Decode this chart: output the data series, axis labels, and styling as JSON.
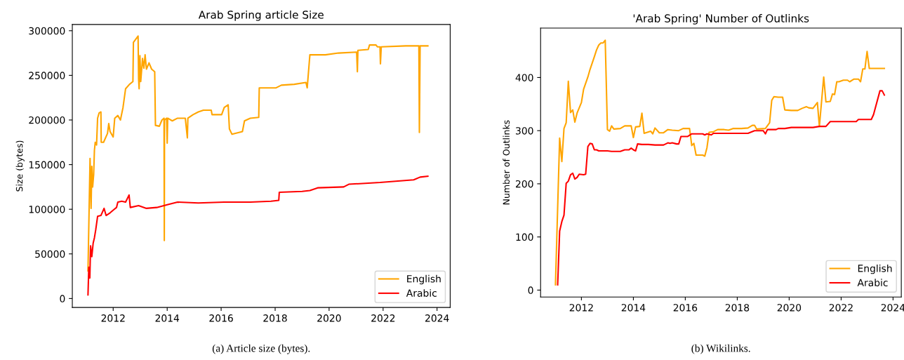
{
  "chart_data": [
    {
      "type": "line",
      "title": "Arab Spring article Size",
      "ylabel": "Size (bytes)",
      "legend": "lower right",
      "grid": false,
      "xlim": [
        "2010-06-27",
        "2024-06-27"
      ],
      "xticks": [
        "2012",
        "2014",
        "2016",
        "2018",
        "2020",
        "2022",
        "2024"
      ],
      "ylim": [
        -10000,
        307000
      ],
      "yticks": [
        0,
        50000,
        100000,
        150000,
        200000,
        250000,
        300000
      ],
      "annotations": [
        "(a) Article size (bytes)."
      ],
      "series": [
        {
          "name": "English",
          "color": "#ffa500",
          "x": [
            "2011-01-25",
            "2011-02-22",
            "2011-03-08",
            "2011-03-18",
            "2011-03-29",
            "2011-04-12",
            "2011-04-22",
            "2011-05-03",
            "2011-05-21",
            "2011-06-04",
            "2011-06-25",
            "2011-07-19",
            "2011-07-23",
            "2011-08-24",
            "2011-10-16",
            "2011-11-02",
            "2011-11-20",
            "2012-01-01",
            "2012-01-22",
            "2012-03-04",
            "2012-04-08",
            "2012-05-13",
            "2012-06-17",
            "2012-08-09",
            "2012-09-24",
            "2012-10-01",
            "2012-12-03",
            "2012-12-10",
            "2012-12-17",
            "2012-12-28",
            "2013-01-08",
            "2013-02-01",
            "2013-02-19",
            "2013-03-08",
            "2013-03-26",
            "2013-04-30",
            "2013-06-04",
            "2013-07-16",
            "2013-07-26",
            "2013-09-17",
            "2013-10-22",
            "2013-11-19",
            "2013-11-23",
            "2013-11-26",
            "2013-12-24",
            "2014-01-01",
            "2014-01-08",
            "2014-03-11",
            "2014-05-21",
            "2014-09-03",
            "2014-10-01",
            "2014-10-08",
            "2014-12-17",
            "2015-02-26",
            "2015-05-07",
            "2015-08-20",
            "2015-08-31",
            "2016-01-08",
            "2016-02-12",
            "2016-04-05",
            "2016-04-22",
            "2016-05-27",
            "2016-10-15",
            "2016-11-12",
            "2017-01-29",
            "2017-05-24",
            "2017-05-31",
            "2018-01-14",
            "2018-03-26",
            "2018-09-17",
            "2019-02-22",
            "2019-03-11",
            "2019-04-16",
            "2019-07-30",
            "2019-11-12",
            "2020-05-07",
            "2021-01-08",
            "2021-01-18",
            "2021-01-25",
            "2021-06-14",
            "2021-07-01",
            "2021-09-27",
            "2021-10-15",
            "2021-11-20",
            "2021-11-26",
            "2021-12-07",
            "2022-11-05",
            "2023-04-30",
            "2023-05-07",
            "2023-05-17",
            "2023-08-30"
          ],
          "values": [
            31000,
            157000,
            101000,
            148000,
            125000,
            139000,
            166000,
            175000,
            172000,
            202000,
            208000,
            209000,
            175000,
            175000,
            185000,
            196000,
            187000,
            181000,
            202000,
            205000,
            200000,
            214000,
            235000,
            240000,
            243000,
            287000,
            294000,
            246000,
            235000,
            272000,
            243000,
            269000,
            258000,
            273000,
            257000,
            264000,
            257000,
            254000,
            194000,
            193000,
            200000,
            202000,
            65000,
            200000,
            202000,
            174000,
            202000,
            199000,
            202000,
            202000,
            180000,
            202000,
            206000,
            209000,
            211000,
            211000,
            206000,
            206000,
            214000,
            217000,
            190000,
            184000,
            187000,
            199000,
            202000,
            203000,
            236000,
            236000,
            239000,
            240000,
            242000,
            236000,
            273000,
            273000,
            273000,
            275000,
            276000,
            254000,
            278000,
            279000,
            284000,
            284000,
            282000,
            282000,
            263000,
            282000,
            283000,
            283000,
            186000,
            283000,
            283000
          ]
        },
        {
          "name": "Arabic",
          "color": "#ff0000",
          "x": [
            "2011-01-25",
            "2011-02-05",
            "2011-02-19",
            "2011-03-01",
            "2011-03-18",
            "2011-04-05",
            "2011-04-22",
            "2011-05-10",
            "2011-06-04",
            "2011-07-19",
            "2011-08-31",
            "2011-09-27",
            "2011-11-20",
            "2012-01-01",
            "2012-02-15",
            "2012-03-04",
            "2012-04-26",
            "2012-06-17",
            "2012-08-03",
            "2012-08-20",
            "2012-12-10",
            "2013-03-26",
            "2013-08-13",
            "2014-01-01",
            "2014-05-21",
            "2015-02-26",
            "2016-02-12",
            "2017-01-29",
            "2017-11-05",
            "2018-02-19",
            "2018-02-26",
            "2019-01-01",
            "2019-04-16",
            "2019-07-30",
            "2020-07-16",
            "2020-09-24",
            "2021-11-20",
            "2023-02-19",
            "2023-05-17",
            "2023-08-30"
          ],
          "values": [
            4000,
            35000,
            23000,
            59000,
            47000,
            62000,
            68000,
            77000,
            92000,
            93000,
            101000,
            93000,
            96000,
            99000,
            102000,
            108000,
            109000,
            108000,
            116000,
            102000,
            104000,
            101000,
            102000,
            105000,
            108000,
            107000,
            108000,
            108000,
            109000,
            110000,
            119000,
            120000,
            121000,
            124000,
            125000,
            128000,
            130000,
            133000,
            136000,
            137000
          ]
        }
      ]
    },
    {
      "type": "line",
      "title": "'Arab Spring' Number of Outlinks",
      "ylabel": "Number of Outlinks",
      "legend": "lower right",
      "grid": false,
      "xlim": [
        "2010-06-06",
        "2024-04-26"
      ],
      "xticks": [
        "2012",
        "2014",
        "2016",
        "2018",
        "2020",
        "2022",
        "2024"
      ],
      "ylim": [
        -13,
        493
      ],
      "yticks": [
        0,
        100,
        200,
        300,
        400
      ],
      "annotations": [
        "(b) Wikilinks."
      ],
      "series": [
        {
          "name": "English",
          "color": "#ffa500",
          "x": [
            "2011-01",
            "2011-03",
            "2011-04",
            "2011-05",
            "2011-06",
            "2011-07",
            "2011-08",
            "2011-09",
            "2011-10",
            "2011-11",
            "2012-01",
            "2012-02",
            "2012-04",
            "2012-05",
            "2012-07",
            "2012-08",
            "2012-09",
            "2012-10",
            "2012-11",
            "2012-12",
            "2013-01",
            "2013-02",
            "2013-03",
            "2013-04",
            "2013-07",
            "2013-09",
            "2013-12",
            "2014-01",
            "2014-02",
            "2014-04",
            "2014-05",
            "2014-06",
            "2014-09",
            "2014-10",
            "2014-11",
            "2015-01",
            "2015-03",
            "2015-05",
            "2015-07",
            "2015-10",
            "2015-12",
            "2016-03",
            "2016-04",
            "2016-05",
            "2016-06",
            "2016-09",
            "2016-10",
            "2016-11",
            "2016-12",
            "2017-02",
            "2017-04",
            "2017-07",
            "2017-09",
            "2017-11",
            "2018-03",
            "2018-06",
            "2018-08",
            "2018-09",
            "2018-10",
            "2019-02",
            "2019-04",
            "2019-05",
            "2019-06",
            "2019-08",
            "2019-10",
            "2019-11",
            "2020-02",
            "2020-05",
            "2020-07",
            "2020-09",
            "2020-10",
            "2020-12",
            "2021-02",
            "2021-03",
            "2021-05",
            "2021-06",
            "2021-08",
            "2021-09",
            "2021-10",
            "2021-11",
            "2021-12",
            "2022-02",
            "2022-04",
            "2022-05",
            "2022-07",
            "2022-09",
            "2022-10",
            "2022-11",
            "2022-12",
            "2023-01",
            "2023-02",
            "2023-09"
          ],
          "values": [
            10,
            286,
            242,
            304,
            315,
            393,
            334,
            339,
            316,
            333,
            353,
            378,
            401,
            415,
            439,
            452,
            461,
            465,
            465,
            470,
            302,
            299,
            309,
            303,
            304,
            309,
            309,
            287,
            307,
            308,
            333,
            295,
            299,
            294,
            305,
            296,
            296,
            302,
            301,
            300,
            304,
            304,
            272,
            276,
            254,
            254,
            252,
            268,
            297,
            298,
            302,
            302,
            301,
            304,
            304,
            305,
            310,
            310,
            303,
            304,
            315,
            357,
            364,
            363,
            363,
            339,
            338,
            338,
            342,
            345,
            343,
            342,
            353,
            308,
            401,
            354,
            355,
            369,
            368,
            392,
            392,
            395,
            395,
            392,
            397,
            397,
            392,
            416,
            416,
            449,
            417,
            417
          ]
        },
        {
          "name": "Arabic",
          "color": "#ff0000",
          "x": [
            "2011-02",
            "2011-03",
            "2011-04",
            "2011-05",
            "2011-06",
            "2011-07",
            "2011-08",
            "2011-09",
            "2011-10",
            "2011-11",
            "2011-12",
            "2012-02",
            "2012-03",
            "2012-04",
            "2012-05",
            "2012-06",
            "2012-07",
            "2012-08",
            "2012-09",
            "2013-01",
            "2013-03",
            "2013-07",
            "2013-09",
            "2013-11",
            "2013-12",
            "2014-01",
            "2014-02",
            "2014-03",
            "2014-05",
            "2014-08",
            "2014-11",
            "2015-03",
            "2015-05",
            "2015-06",
            "2015-07",
            "2015-09",
            "2015-10",
            "2015-11",
            "2016-02",
            "2016-04",
            "2016-09",
            "2016-10",
            "2016-11",
            "2017-01",
            "2017-02",
            "2018-06",
            "2018-09",
            "2019-01",
            "2019-02",
            "2019-03",
            "2019-07",
            "2019-08",
            "2019-11",
            "2020-02",
            "2020-12",
            "2021-03",
            "2021-06",
            "2021-08",
            "2022-08",
            "2022-09",
            "2023-03",
            "2023-04",
            "2023-07",
            "2023-08",
            "2023-09"
          ],
          "values": [
            10,
            111,
            129,
            141,
            201,
            205,
            217,
            220,
            209,
            212,
            218,
            217,
            218,
            270,
            276,
            275,
            264,
            264,
            262,
            262,
            261,
            261,
            264,
            264,
            267,
            264,
            262,
            275,
            274,
            274,
            273,
            273,
            277,
            276,
            277,
            275,
            275,
            289,
            289,
            294,
            294,
            292,
            294,
            292,
            295,
            295,
            300,
            300,
            294,
            302,
            302,
            304,
            304,
            306,
            306,
            308,
            308,
            317,
            317,
            321,
            321,
            330,
            375,
            375,
            367
          ]
        }
      ]
    }
  ]
}
